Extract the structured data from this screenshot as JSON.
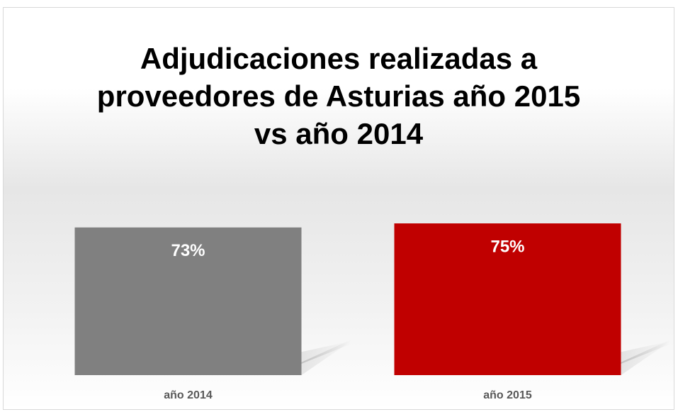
{
  "chart_data": {
    "type": "bar",
    "title": "Adjudicaciones realizadas a proveedores de Asturias año 2015 vs año 2014",
    "categories": [
      "año 2014",
      "año 2015"
    ],
    "values": [
      73,
      75
    ],
    "value_labels": [
      "73%",
      "75%"
    ],
    "colors": [
      "#808080",
      "#c00000"
    ]
  }
}
